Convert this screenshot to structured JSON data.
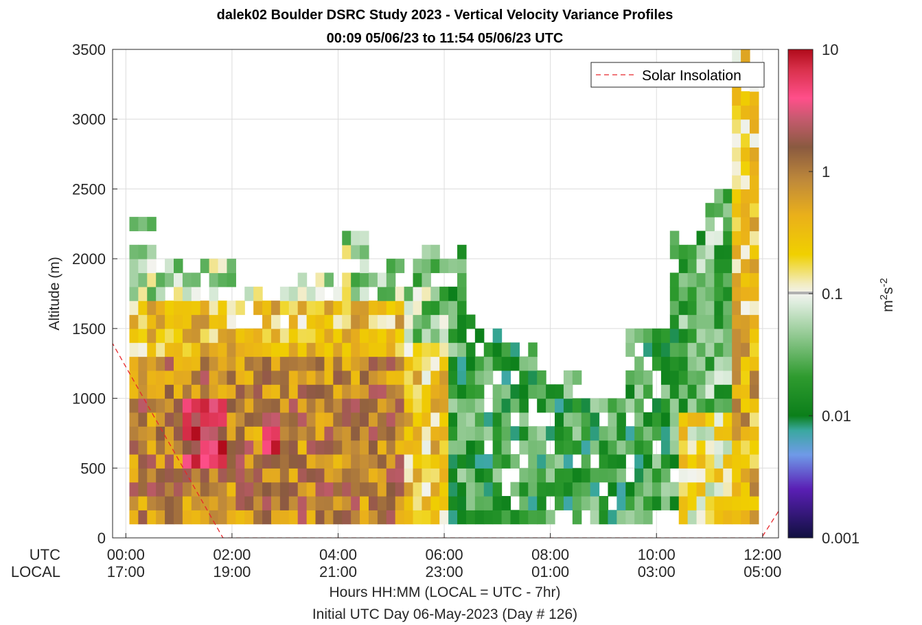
{
  "chart_data": {
    "type": "heatmap",
    "title": "dalek02 Boulder DSRC Study 2023 - Vertical Velocity Variance Profiles",
    "subtitle": "00:09 05/06/23 to 11:54 05/06/23  UTC",
    "ylabel": "Altitude (m)",
    "xlabel": "Hours HH:MM  (LOCAL = UTC - 7hr)",
    "xlabel2": "Initial UTC Day 06-May-2023 (Day # 126)",
    "row_label_utc": "UTC",
    "row_label_local": "LOCAL",
    "ylim": [
      0,
      3500
    ],
    "xlim_hours": [
      -0.25,
      12.3
    ],
    "yticks": [
      "0",
      "500",
      "1000",
      "1500",
      "2000",
      "2500",
      "3000",
      "3500"
    ],
    "xticks_utc": [
      "00:00",
      "02:00",
      "04:00",
      "06:00",
      "08:00",
      "10:00",
      "12:00"
    ],
    "xticks_local": [
      "17:00",
      "19:00",
      "21:00",
      "23:00",
      "01:00",
      "03:00",
      "05:00"
    ],
    "grid": true,
    "colorbar": {
      "scale": "log",
      "range": [
        0.001,
        10
      ],
      "tick_labels": [
        "10",
        "1",
        "0.1",
        "0.01",
        "0.001"
      ],
      "unit_label": "m",
      "unit_sup1": "2",
      "unit_mid": "s",
      "unit_sup2": "-2"
    },
    "legend": {
      "entries": [
        "Solar Insolation"
      ],
      "placement": "top-right",
      "line_color": "#e8262b",
      "line_style": "dashed"
    },
    "solar_insolation": {
      "x_hours": [
        -0.5,
        1.83,
        11.98,
        12.5
      ],
      "y_altitude": [
        1560,
        0,
        0,
        310
      ]
    },
    "data_summary": {
      "time_range_utc_hours": [
        0.15,
        11.9
      ],
      "bin_width_hours": 0.167,
      "bin_height_m": 100,
      "description_values": "Vertical velocity variance profiles; high variance (0.3-3 m2/s2) below ~1500 m from 00:00-05:00 UTC, peak ~3-4 m2/s2 near 700-900 m around 01:30 and 03:00 UTC; low variance (0.003-0.1 m2/s2) from 06:00-11:00 UTC; elevated layer up to 3500 m near 12:00 UTC."
    }
  }
}
